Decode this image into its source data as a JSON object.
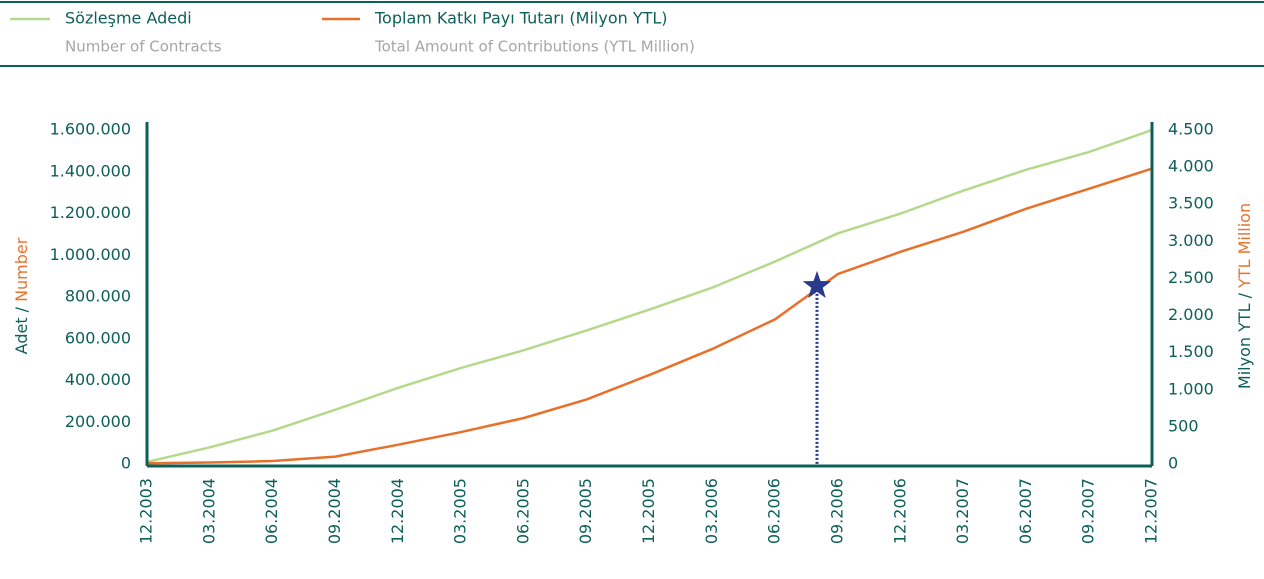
{
  "chart_data": {
    "type": "line",
    "categories": [
      "12.2003",
      "03.2004",
      "06.2004",
      "09.2004",
      "12.2004",
      "03.2005",
      "06.2005",
      "09.2005",
      "12.2005",
      "03.2006",
      "06.2006",
      "09.2006",
      "12.2006",
      "03.2007",
      "06.2007",
      "09.2007",
      "12.2007"
    ],
    "series": [
      {
        "name": "Sözleşme Adedi",
        "subname": "Number of Contracts",
        "color": "#b5d98c",
        "values": [
          10000,
          80000,
          160000,
          260000,
          365000,
          460000,
          545000,
          640000,
          740000,
          845000,
          970000,
          1105000,
          1200000,
          1310000,
          1410000,
          1495000,
          1600000
        ]
      },
      {
        "name": "Toplam Katkı Payı Tutarı (Milyon YTL)",
        "subname": "Total Amount of Contributions (YTL Million)",
        "color": "#e8702a",
        "axis": "y2",
        "values": [
          10,
          20,
          40,
          100,
          260,
          430,
          620,
          870,
          1200,
          1550,
          1950,
          2560,
          2860,
          3130,
          3440,
          3710,
          3980
        ]
      }
    ],
    "ylabel": {
      "main": "Adet /",
      "sub": "Number"
    },
    "y2label": {
      "main": "Milyon YTL /",
      "sub": "YTL Million"
    },
    "ylim": [
      0,
      1600000
    ],
    "yticks": [
      0,
      {
        "value": 200000,
        "label": "200.000"
      },
      {
        "value": 400000,
        "label": "400.000"
      },
      {
        "value": 600000,
        "label": "600.000"
      },
      {
        "value": 800000,
        "label": "800.000"
      },
      {
        "value": 1000000,
        "label": "1.000.000"
      },
      {
        "value": 1200000,
        "label": "1.200.000"
      },
      {
        "value": 1400000,
        "label": "1.400.000"
      },
      {
        "value": 1600000,
        "label": "1.600.000"
      }
    ],
    "y2lim": [
      0,
      4500
    ],
    "y2ticks": [
      0,
      500,
      {
        "value": 1000,
        "label": "1.000"
      },
      {
        "value": 1500,
        "label": "1.500"
      },
      {
        "value": 2000,
        "label": "2.000"
      },
      {
        "value": 2500,
        "label": "2.500"
      },
      {
        "value": 3000,
        "label": "3.000"
      },
      {
        "value": 3500,
        "label": "3.500"
      },
      {
        "value": 4000,
        "label": "4.000"
      },
      {
        "value": 4500,
        "label": "4.500"
      }
    ],
    "marker": {
      "x": "08.2006",
      "value": 2400,
      "axis": "y2",
      "color": "#2a3a8c"
    },
    "grid": false
  }
}
